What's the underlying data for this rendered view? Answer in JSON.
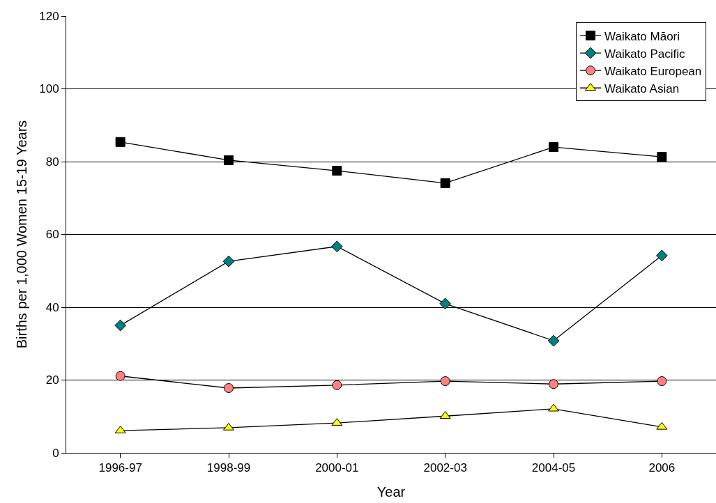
{
  "chart_data": {
    "type": "line",
    "xlabel": "Year",
    "ylabel": "Births per 1,000 Women 15-19 Years",
    "categories": [
      "1996-97",
      "1998-99",
      "2000-01",
      "2002-03",
      "2004-05",
      "2006"
    ],
    "series": [
      {
        "name": "Waikato Māori",
        "color": "#000000",
        "marker": "square",
        "values": [
          85.4,
          80.4,
          77.5,
          74.1,
          84.0,
          81.3
        ]
      },
      {
        "name": "Waikato Pacific",
        "color": "#008080",
        "marker": "diamond",
        "values": [
          35.0,
          52.6,
          56.7,
          41.0,
          30.8,
          54.2
        ]
      },
      {
        "name": "Waikato European",
        "color": "#ff8080",
        "marker": "circle",
        "values": [
          21.1,
          17.8,
          18.6,
          19.7,
          18.9,
          19.7
        ]
      },
      {
        "name": "Waikato Asian",
        "color": "#ffff00",
        "marker": "triangle",
        "values": [
          6.1,
          6.9,
          8.2,
          10.1,
          12.1,
          7.1
        ]
      }
    ],
    "ylim": [
      0,
      120
    ],
    "yticks": [
      0,
      20,
      40,
      60,
      80,
      100,
      120
    ],
    "grid": "y",
    "legend": "top right",
    "line_style": "solid"
  }
}
